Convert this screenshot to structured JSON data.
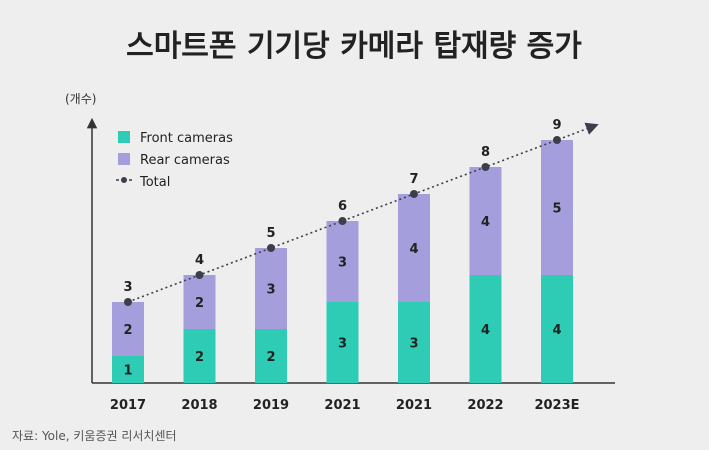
{
  "chart_data": {
    "type": "bar",
    "stacked": true,
    "title": "스마트폰 기기당 카메라 탑재량 증가",
    "ylabel": "(개수)",
    "xlabel": "",
    "categories": [
      "2017",
      "2018",
      "2019",
      "2021",
      "2021",
      "2022",
      "2023E"
    ],
    "series": [
      {
        "name": "Front cameras",
        "values": [
          1,
          2,
          2,
          3,
          3,
          4,
          4
        ],
        "color": "#2ecbb5"
      },
      {
        "name": "Rear cameras",
        "values": [
          2,
          2,
          3,
          3,
          4,
          4,
          5
        ],
        "color": "#a49fdc"
      }
    ],
    "total": {
      "name": "Total",
      "values": [
        3,
        4,
        5,
        6,
        7,
        8,
        9
      ],
      "color": "#3a3f4a",
      "style": "dotted-trend"
    },
    "ylim": [
      0,
      10
    ],
    "grid": false,
    "legend": "top-left"
  },
  "source": "자료: Yole, 키움증권 리서치센터"
}
